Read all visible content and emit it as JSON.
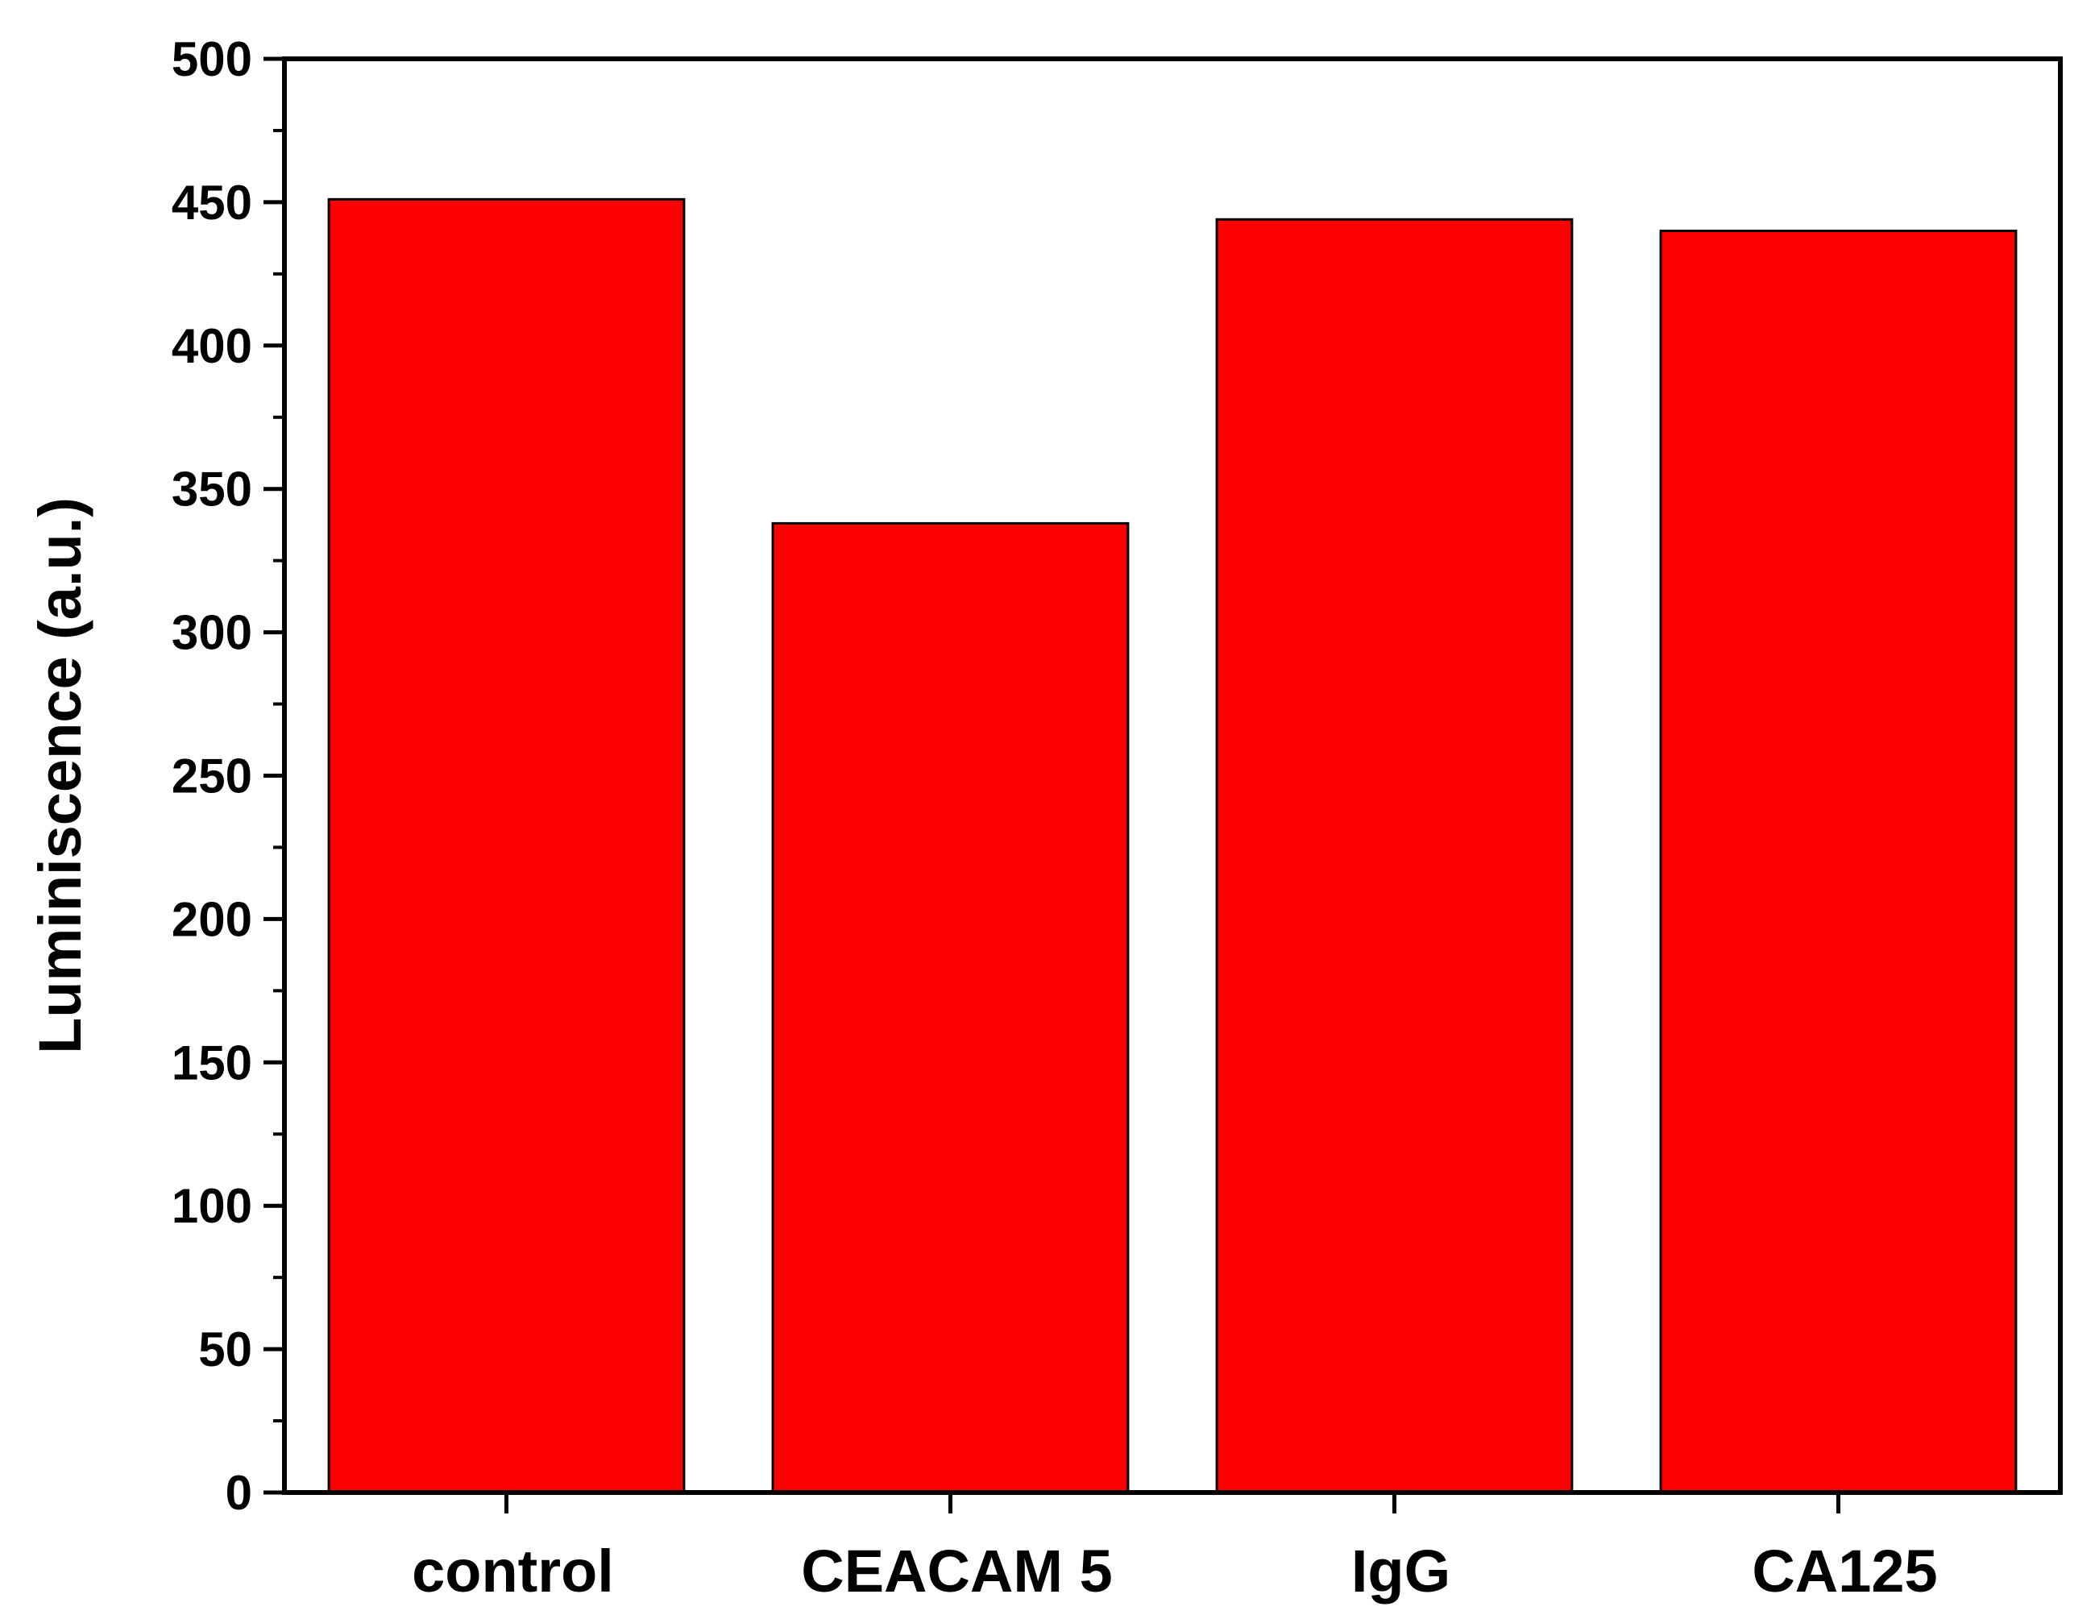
{
  "chart_data": {
    "type": "bar",
    "title": "",
    "xlabel": "",
    "ylabel": "Luminiscence (a.u.)",
    "categories": [
      "control",
      "CEACAM 5",
      "IgG",
      "CA125"
    ],
    "values": [
      451,
      338,
      444,
      440
    ],
    "ylim": [
      0,
      500
    ],
    "yticks": [
      0,
      50,
      100,
      150,
      200,
      250,
      300,
      350,
      400,
      450,
      500
    ],
    "grid": false,
    "legend": "none",
    "bar_color": "#ff0000",
    "edge_color": "#000000"
  }
}
